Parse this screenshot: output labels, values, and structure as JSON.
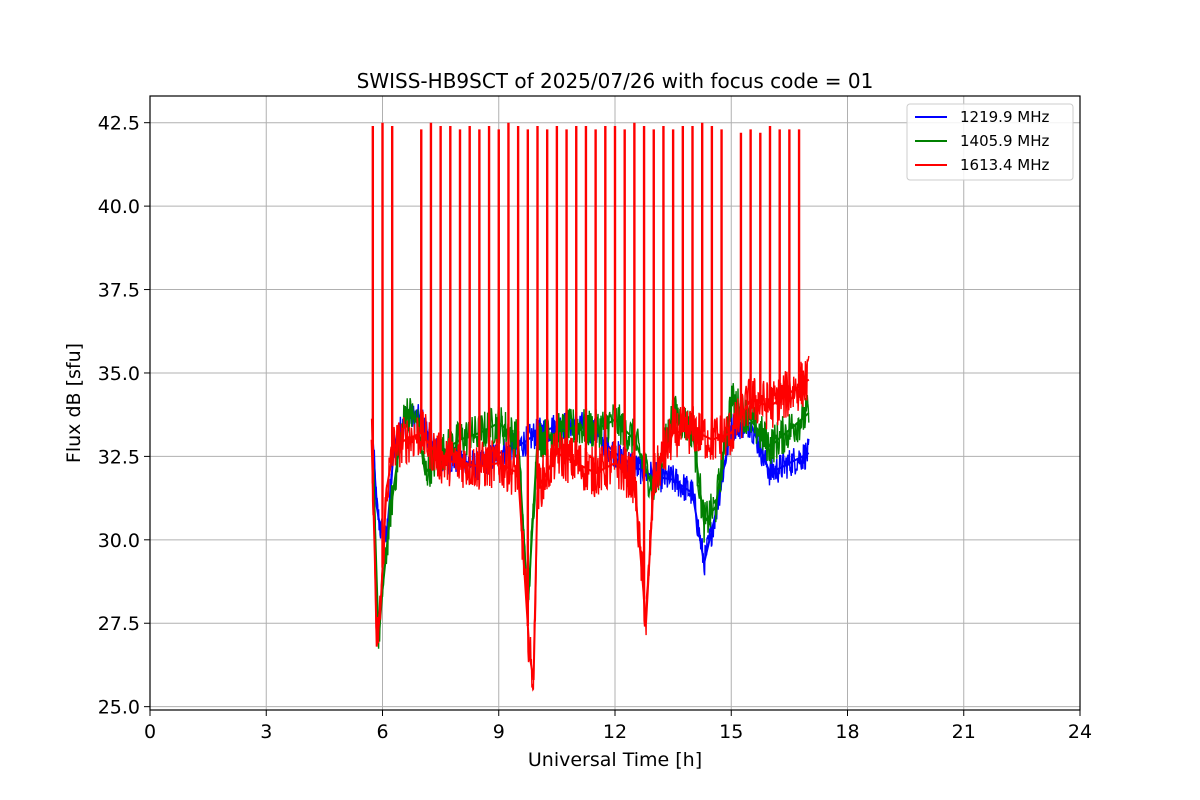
{
  "chart_data": {
    "type": "line",
    "title": "SWISS-HB9SCT of 2025/07/26 with focus code = 01",
    "xlabel": "Universal Time [h]",
    "ylabel": "Flux dB [sfu]",
    "xlim": [
      0,
      24
    ],
    "ylim": [
      24.9,
      43.3
    ],
    "xticks": [
      0,
      3,
      6,
      9,
      12,
      15,
      18,
      21,
      24
    ],
    "yticks": [
      25.0,
      27.5,
      30.0,
      32.5,
      35.0,
      37.5,
      40.0,
      42.5
    ],
    "ytick_labels": [
      "25.0",
      "27.5",
      "30.0",
      "32.5",
      "35.0",
      "37.5",
      "40.0",
      "42.5"
    ],
    "grid": true,
    "legend_position": "top-right",
    "series": [
      {
        "name": "1219.9 MHz",
        "color": "#0000ff",
        "points": [
          [
            5.75,
            33.0
          ],
          [
            5.85,
            31.0
          ],
          [
            5.95,
            30.3
          ],
          [
            6.1,
            30.0
          ],
          [
            6.3,
            32.8
          ],
          [
            6.6,
            33.7
          ],
          [
            7.0,
            33.6
          ],
          [
            7.5,
            32.4
          ],
          [
            8.0,
            32.4
          ],
          [
            8.5,
            32.2
          ],
          [
            9.0,
            32.6
          ],
          [
            9.5,
            32.8
          ],
          [
            10.0,
            33.2
          ],
          [
            10.5,
            33.4
          ],
          [
            11.0,
            33.5
          ],
          [
            11.5,
            33.2
          ],
          [
            12.0,
            32.6
          ],
          [
            12.5,
            32.2
          ],
          [
            13.0,
            31.9
          ],
          [
            13.5,
            31.8
          ],
          [
            14.0,
            31.4
          ],
          [
            14.3,
            29.3
          ],
          [
            14.6,
            30.8
          ],
          [
            15.0,
            33.4
          ],
          [
            15.5,
            33.5
          ],
          [
            16.0,
            32.0
          ],
          [
            16.5,
            32.3
          ],
          [
            17.0,
            32.6
          ]
        ]
      },
      {
        "name": "1405.9 MHz",
        "color": "#008000",
        "points": [
          [
            5.75,
            32.5
          ],
          [
            5.9,
            27.0
          ],
          [
            6.0,
            28.5
          ],
          [
            6.2,
            30.8
          ],
          [
            6.4,
            32.5
          ],
          [
            6.6,
            33.9
          ],
          [
            6.9,
            33.5
          ],
          [
            7.1,
            32.0
          ],
          [
            7.5,
            32.6
          ],
          [
            8.0,
            33.0
          ],
          [
            8.5,
            33.2
          ],
          [
            9.0,
            33.5
          ],
          [
            9.5,
            33.0
          ],
          [
            9.75,
            28.0
          ],
          [
            10.0,
            33.0
          ],
          [
            10.5,
            33.2
          ],
          [
            11.0,
            33.4
          ],
          [
            11.5,
            33.3
          ],
          [
            12.0,
            33.6
          ],
          [
            12.5,
            33.0
          ],
          [
            13.0,
            31.5
          ],
          [
            13.5,
            33.8
          ],
          [
            14.0,
            33.3
          ],
          [
            14.3,
            30.5
          ],
          [
            14.6,
            31.0
          ],
          [
            15.0,
            34.2
          ],
          [
            15.5,
            33.6
          ],
          [
            16.0,
            32.8
          ],
          [
            16.5,
            33.3
          ],
          [
            17.0,
            33.8
          ]
        ]
      },
      {
        "name": "1613.4 MHz",
        "color": "#ff0000",
        "points": [
          [
            5.72,
            33.0
          ],
          [
            5.8,
            29.5
          ],
          [
            5.85,
            26.8
          ],
          [
            5.95,
            28.0
          ],
          [
            6.1,
            31.5
          ],
          [
            6.3,
            32.8
          ],
          [
            6.6,
            33.0
          ],
          [
            7.0,
            33.2
          ],
          [
            7.5,
            32.4
          ],
          [
            8.0,
            32.3
          ],
          [
            8.5,
            32.2
          ],
          [
            9.0,
            32.3
          ],
          [
            9.5,
            32.0
          ],
          [
            9.8,
            26.5
          ],
          [
            9.9,
            25.8
          ],
          [
            10.0,
            31.5
          ],
          [
            10.5,
            32.6
          ],
          [
            11.0,
            32.3
          ],
          [
            11.5,
            32.0
          ],
          [
            12.0,
            32.3
          ],
          [
            12.5,
            31.8
          ],
          [
            12.8,
            27.5
          ],
          [
            13.0,
            31.8
          ],
          [
            13.5,
            33.2
          ],
          [
            14.0,
            33.3
          ],
          [
            14.5,
            33.0
          ],
          [
            15.0,
            33.2
          ],
          [
            15.5,
            34.2
          ],
          [
            16.0,
            34.0
          ],
          [
            16.5,
            34.4
          ],
          [
            17.0,
            34.8
          ]
        ]
      }
    ],
    "spikes": {
      "series": "1613.4 MHz",
      "x": [
        5.75,
        6.0,
        6.25,
        7.0,
        7.25,
        7.5,
        7.75,
        8.0,
        8.25,
        8.5,
        8.75,
        9.0,
        9.25,
        9.5,
        9.75,
        10.0,
        10.25,
        10.5,
        10.75,
        11.0,
        11.25,
        11.5,
        11.75,
        12.0,
        12.25,
        12.5,
        12.75,
        13.0,
        13.25,
        13.5,
        13.75,
        14.0,
        14.25,
        14.5,
        14.75,
        15.25,
        15.5,
        15.75,
        16.0,
        16.25,
        16.5,
        16.75
      ],
      "y": [
        42.4,
        42.5,
        42.4,
        42.3,
        42.5,
        42.4,
        42.4,
        42.3,
        42.4,
        42.3,
        42.4,
        42.3,
        42.5,
        42.4,
        42.3,
        42.4,
        42.3,
        42.4,
        42.3,
        42.4,
        42.4,
        42.3,
        42.4,
        42.4,
        42.3,
        42.5,
        42.4,
        42.3,
        42.4,
        42.3,
        42.4,
        42.4,
        42.5,
        42.4,
        42.3,
        42.2,
        42.3,
        42.2,
        42.4,
        42.3,
        42.3,
        42.3
      ]
    }
  }
}
